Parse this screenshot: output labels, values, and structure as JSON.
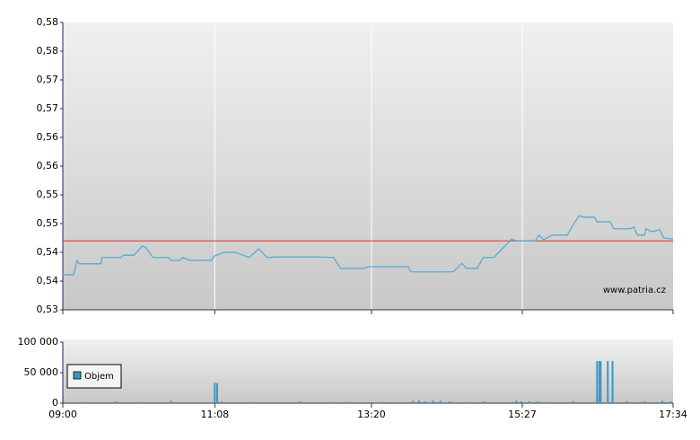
{
  "chart_data": [
    {
      "type": "line",
      "xlim": [
        "09:00",
        "17:34"
      ],
      "ylim": [
        0.53,
        0.58
      ],
      "yticks": [
        {
          "value": 0.53,
          "label": "0,53"
        },
        {
          "value": 0.535,
          "label": "0,54"
        },
        {
          "value": 0.54,
          "label": "0,54"
        },
        {
          "value": 0.545,
          "label": "0,55"
        },
        {
          "value": 0.55,
          "label": "0,55"
        },
        {
          "value": 0.555,
          "label": "0,56"
        },
        {
          "value": 0.56,
          "label": "0,56"
        },
        {
          "value": 0.565,
          "label": "0,57"
        },
        {
          "value": 0.57,
          "label": "0,57"
        },
        {
          "value": 0.575,
          "label": "0,58"
        },
        {
          "value": 0.58,
          "label": "0,58"
        }
      ],
      "xticks": [
        "09:00",
        "11:08",
        "13:20",
        "15:27",
        "17:34"
      ],
      "grid": true,
      "color": "#5aa9d4",
      "reference_line": 0.542,
      "reference_color": "#e03030",
      "annotation": "www.patria.cz",
      "x": [
        "09:00",
        "09:09",
        "09:12",
        "09:14",
        "09:32",
        "09:33",
        "09:49",
        "09:51",
        "10:00",
        "10:07",
        "10:10",
        "10:16",
        "10:29",
        "10:31",
        "10:38",
        "10:41",
        "10:47",
        "11:05",
        "11:08",
        "11:16",
        "11:25",
        "11:37",
        "11:45",
        "11:52",
        "12:01",
        "12:35",
        "12:48",
        "12:54",
        "13:13",
        "13:17",
        "13:51",
        "13:53",
        "14:29",
        "14:36",
        "14:40",
        "14:49",
        "14:54",
        "15:03",
        "15:18",
        "15:22",
        "15:38",
        "15:41",
        "15:45",
        "15:52",
        "16:05",
        "16:09",
        "16:15",
        "16:18",
        "16:28",
        "16:30",
        "16:41",
        "16:44",
        "16:58",
        "17:01",
        "17:04",
        "17:10",
        "17:11",
        "17:16",
        "17:23",
        "17:26",
        "17:34"
      ],
      "values": [
        0.5361,
        0.5361,
        0.5386,
        0.538,
        0.538,
        0.5391,
        0.5391,
        0.5395,
        0.5395,
        0.5411,
        0.5408,
        0.5391,
        0.5391,
        0.5386,
        0.5386,
        0.5391,
        0.5386,
        0.5386,
        0.5394,
        0.54,
        0.54,
        0.5391,
        0.5406,
        0.5391,
        0.5392,
        0.5392,
        0.5391,
        0.5372,
        0.5372,
        0.5375,
        0.5375,
        0.5366,
        0.5366,
        0.5381,
        0.5372,
        0.5372,
        0.5391,
        0.5391,
        0.5423,
        0.542,
        0.542,
        0.543,
        0.5422,
        0.543,
        0.543,
        0.5445,
        0.5464,
        0.5461,
        0.5461,
        0.5453,
        0.5453,
        0.5441,
        0.5441,
        0.5444,
        0.543,
        0.543,
        0.5441,
        0.5436,
        0.5439,
        0.5425,
        0.5423
      ]
    },
    {
      "type": "bar",
      "xlim": [
        "09:00",
        "17:34"
      ],
      "ylim": [
        0,
        100000
      ],
      "yticks": [
        0,
        {
          "value": 50000,
          "label": "50 000"
        },
        {
          "value": 100000,
          "label": "100 000"
        }
      ],
      "xticks": [
        "09:00",
        "11:08",
        "13:20",
        "15:27",
        "17:34"
      ],
      "legend": "lower left",
      "series": [
        {
          "name": "Objem",
          "color": "#3d95c5",
          "x": [
            "09:16",
            "09:45",
            "10:02",
            "10:31",
            "11:08",
            "11:10",
            "11:14",
            "11:40",
            "12:20",
            "12:45",
            "13:02",
            "13:30",
            "13:55",
            "14:00",
            "14:05",
            "14:12",
            "14:18",
            "14:26",
            "14:40",
            "14:55",
            "15:22",
            "15:26",
            "15:33",
            "15:40",
            "15:48",
            "16:10",
            "16:30",
            "16:32",
            "16:33",
            "16:39",
            "16:43",
            "16:55",
            "17:10",
            "17:25",
            "17:32"
          ],
          "values": [
            2000,
            3000,
            2000,
            4000,
            34000,
            33000,
            3000,
            2000,
            3000,
            2000,
            2000,
            2000,
            4000,
            4000,
            3000,
            4000,
            4000,
            3000,
            2000,
            3000,
            4000,
            3000,
            3000,
            3000,
            2000,
            3000,
            69000,
            69000,
            69000,
            69000,
            69000,
            3000,
            3000,
            4000,
            3000
          ]
        }
      ]
    }
  ]
}
